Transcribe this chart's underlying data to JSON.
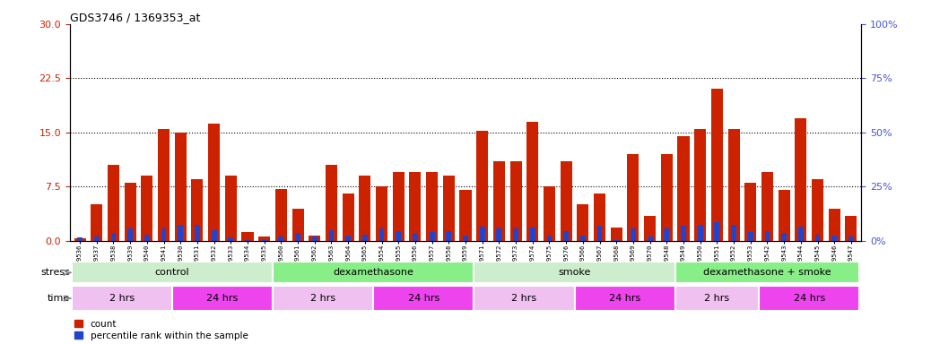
{
  "title": "GDS3746 / 1369353_at",
  "samples": [
    "GSM389536",
    "GSM389537",
    "GSM389538",
    "GSM389539",
    "GSM389540",
    "GSM389541",
    "GSM389530",
    "GSM389531",
    "GSM389532",
    "GSM389533",
    "GSM389534",
    "GSM389535",
    "GSM389560",
    "GSM389561",
    "GSM389562",
    "GSM389563",
    "GSM389564",
    "GSM389565",
    "GSM389554",
    "GSM389555",
    "GSM389556",
    "GSM389557",
    "GSM389558",
    "GSM389559",
    "GSM389571",
    "GSM389572",
    "GSM389573",
    "GSM389574",
    "GSM389575",
    "GSM389576",
    "GSM389566",
    "GSM389567",
    "GSM389568",
    "GSM389569",
    "GSM389570",
    "GSM389548",
    "GSM389549",
    "GSM389550",
    "GSM389551",
    "GSM389552",
    "GSM389553",
    "GSM389542",
    "GSM389543",
    "GSM389544",
    "GSM389545",
    "GSM389546",
    "GSM389547"
  ],
  "count_values": [
    0.3,
    5.0,
    10.5,
    8.0,
    9.0,
    15.5,
    15.0,
    8.5,
    16.2,
    9.0,
    1.2,
    0.6,
    7.2,
    4.5,
    0.7,
    10.5,
    6.5,
    9.0,
    7.5,
    9.5,
    9.5,
    9.5,
    9.0,
    7.0,
    15.2,
    11.0,
    11.0,
    16.5,
    7.5,
    11.0,
    5.0,
    6.5,
    1.8,
    12.0,
    3.5,
    12.0,
    14.5,
    15.5,
    21.0,
    15.5,
    8.0,
    9.5,
    7.0,
    17.0,
    8.5,
    4.5,
    3.5
  ],
  "percentile_values": [
    1.5,
    2.0,
    3.5,
    5.5,
    3.0,
    5.5,
    7.5,
    7.5,
    5.0,
    1.5,
    0.5,
    0.2,
    2.0,
    3.5,
    2.0,
    5.0,
    2.5,
    3.0,
    5.5,
    4.5,
    3.5,
    4.0,
    4.5,
    2.5,
    6.5,
    5.5,
    5.5,
    6.0,
    2.5,
    4.5,
    2.5,
    7.0,
    0.5,
    5.5,
    2.0,
    5.5,
    7.0,
    7.5,
    8.5,
    7.5,
    4.0,
    4.5,
    3.5,
    6.5,
    3.0,
    2.5,
    2.0
  ],
  "bar_color": "#cc2200",
  "pct_color": "#2244cc",
  "left_ylim": [
    0,
    30
  ],
  "right_ylim": [
    0,
    100
  ],
  "left_yticks": [
    0,
    7.5,
    15,
    22.5,
    30
  ],
  "right_yticks": [
    0,
    25,
    50,
    75,
    100
  ],
  "grid_values": [
    7.5,
    15,
    22.5
  ],
  "stress_groups": [
    {
      "label": "control",
      "start": 0,
      "end": 12,
      "color": "#cceecc"
    },
    {
      "label": "dexamethasone",
      "start": 12,
      "end": 24,
      "color": "#88ee88"
    },
    {
      "label": "smoke",
      "start": 24,
      "end": 36,
      "color": "#cceecc"
    },
    {
      "label": "dexamethasone + smoke",
      "start": 36,
      "end": 47,
      "color": "#88ee88"
    }
  ],
  "time_groups": [
    {
      "label": "2 hrs",
      "start": 0,
      "end": 6,
      "color": "#f0c0f0"
    },
    {
      "label": "24 hrs",
      "start": 6,
      "end": 12,
      "color": "#ee44ee"
    },
    {
      "label": "2 hrs",
      "start": 12,
      "end": 18,
      "color": "#f0c0f0"
    },
    {
      "label": "24 hrs",
      "start": 18,
      "end": 24,
      "color": "#ee44ee"
    },
    {
      "label": "2 hrs",
      "start": 24,
      "end": 30,
      "color": "#f0c0f0"
    },
    {
      "label": "24 hrs",
      "start": 30,
      "end": 36,
      "color": "#ee44ee"
    },
    {
      "label": "2 hrs",
      "start": 36,
      "end": 41,
      "color": "#f0c0f0"
    },
    {
      "label": "24 hrs",
      "start": 41,
      "end": 47,
      "color": "#ee44ee"
    }
  ]
}
